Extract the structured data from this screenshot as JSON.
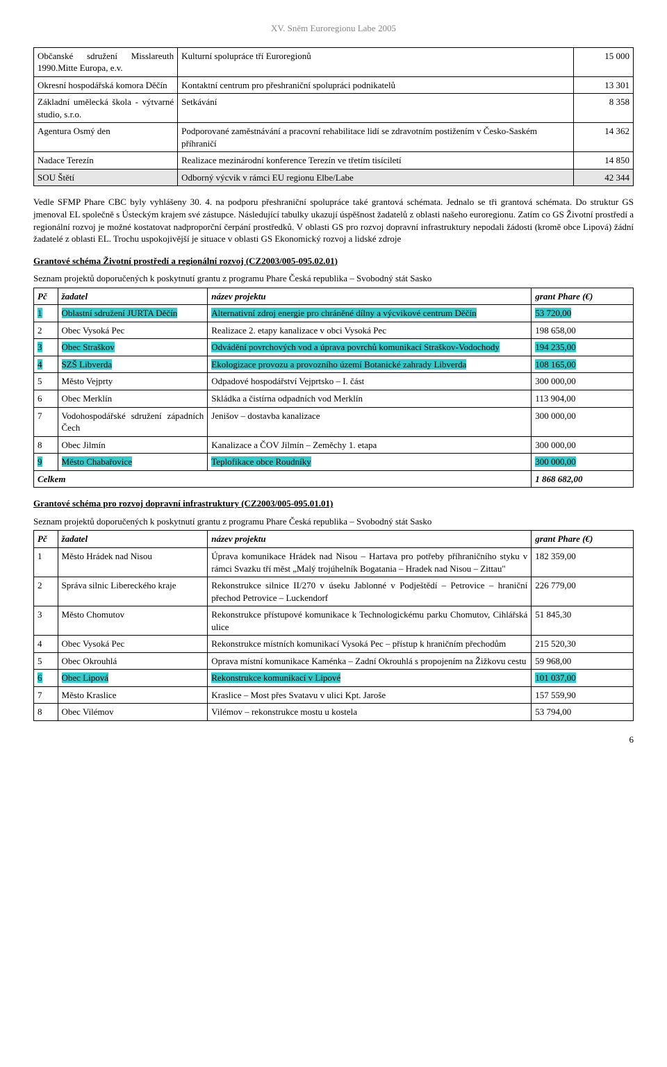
{
  "header": "XV. Sněm Euroregionu Labe  2005",
  "table1": {
    "rows": [
      {
        "c1": "Občanské sdružení Misslareuth 1990.Mitte Europa, e.v.",
        "c2": "Kulturní spolupráce tří Euroregionů",
        "c3": "15 000"
      },
      {
        "c1": "Okresní hospodářská komora Děčín",
        "c2": "Kontaktní centrum pro přeshraniční spolupráci podnikatelů",
        "c3": "13 301"
      },
      {
        "c1": "Základní umělecká škola - výtvarné studio, s.r.o.",
        "c2": "Setkávání",
        "c3": "8 358"
      },
      {
        "c1": "Agentura Osmý den",
        "c2": "Podporované zaměstnávání a pracovní rehabilitace lidí se zdravotním postižením v Česko-Saském příhraničí",
        "c3": "14 362"
      },
      {
        "c1": "Nadace Terezín",
        "c2": "Realizace mezinárodní konference Terezín ve třetím tisíciletí",
        "c3": "14 850"
      },
      {
        "c1": "SOU Štětí",
        "c2": "Odborný výcvik v rámci EU regionu Elbe/Labe",
        "c3": "42 344",
        "shade": true
      }
    ]
  },
  "paragraph": "Vedle SFMP Phare CBC byly vyhlášeny 30. 4. na podporu přeshraniční spolupráce také grantová schémata. Jednalo se tři grantová schémata. Do struktur GS jmenoval EL společně s Ústeckým krajem své zástupce. Následující tabulky ukazují úspěšnost žadatelů z oblasti našeho euroregionu. Zatím co GS Životní prostředí a regionální rozvoj je možné kostatovat nadproporční čerpání prostředků. V oblasti GS pro rozvoj dopravní infrastruktury nepodali žádosti (kromě obce Lipová) žádní žadatelé z oblasti EL. Trochu uspokojivější je situace v oblasti GS Ekonomický rozvoj a lidské zdroje",
  "scheme1": {
    "heading": "Grantové schéma Životní prostředí a regionální rozvoj (CZ2003/005-095.02.01)",
    "caption": "Seznam projektů doporučených k poskytnutí grantu z programu Phare Česká republika – Svobodný stát Sasko",
    "headers": {
      "pc": "Pč",
      "app": "žadatel",
      "proj": "název projektu",
      "grant": "grant Phare (€)"
    },
    "rows": [
      {
        "n": "1",
        "app": "Oblastní sdružení JURTA Děčín",
        "proj": "Alternativní zdroj energie pro chráněné dílny a výcvikové centrum Děčín",
        "grant": "53 720,00",
        "hl": true
      },
      {
        "n": "2",
        "app": "Obec Vysoká Pec",
        "proj": "Realizace 2. etapy kanalizace v obci Vysoká Pec",
        "grant": "198 658,00"
      },
      {
        "n": "3",
        "app": "Obec Straškov",
        "proj": "Odvádění povrchových vod a úprava povrchů komunikací Straškov-Vodochody",
        "grant": "194 235,00",
        "hl": true
      },
      {
        "n": "4",
        "app": "SZŠ Libverda",
        "proj": "Ekologizace provozu a provozního území Botanické zahrady Libverda",
        "grant": "108 165,00",
        "hl": true
      },
      {
        "n": "5",
        "app": "Město Vejprty",
        "proj": "Odpadové hospodářství Vejprtsko – I. část",
        "grant": "300 000,00"
      },
      {
        "n": "6",
        "app": "Obec Merklín",
        "proj": "Skládka a čistírna odpadních vod Merklín",
        "grant": "113 904,00"
      },
      {
        "n": "7",
        "app": "Vodohospodářské sdružení západních Čech",
        "proj": "Jenišov – dostavba kanalizace",
        "grant": "300 000,00"
      },
      {
        "n": "8",
        "app": "Obec Jilmín",
        "proj": "Kanalizace a ČOV Jilmín – Zeměchy 1. etapa",
        "grant": "300 000,00"
      },
      {
        "n": "9",
        "app": "Město Chabařovice",
        "proj": "Teplofikace obce Roudníky",
        "grant": "300 000,00",
        "hl": true
      }
    ],
    "total_label": "Celkem",
    "total_value": "1 868 682,00"
  },
  "scheme2": {
    "heading": "Grantové schéma pro rozvoj dopravní infrastruktury (CZ2003/005-095.01.01)",
    "caption": "Seznam projektů doporučených k poskytnutí grantu z programu Phare Česká republika – Svobodný stát Sasko",
    "headers": {
      "pc": "Pč",
      "app": "žadatel",
      "proj": "název projektu",
      "grant": "grant Phare (€)"
    },
    "rows": [
      {
        "n": "1",
        "app": "Město Hrádek nad Nisou",
        "proj": "Úprava komunikace Hrádek nad Nisou – Hartava pro potřeby příhraničního styku v rámci Svazku tří měst „Malý trojúhelník Bogatania – Hradek nad Nisou – Zittau\"",
        "grant": "182 359,00"
      },
      {
        "n": "2",
        "app": "Správa silnic Libereckého kraje",
        "proj": "Rekonstrukce silnice II/270 v úseku Jablonné v Podještědí – Petrovice – hraniční přechod Petrovice – Luckendorf",
        "grant": "226 779,00"
      },
      {
        "n": "3",
        "app": "Město Chomutov",
        "proj": "Rekonstrukce přístupové komunikace k Technologickému parku Chomutov, Cihlářská ulice",
        "grant": "51 845,30"
      },
      {
        "n": "4",
        "app": "Obec Vysoká Pec",
        "proj": "Rekonstrukce místních komunikací Vysoká Pec – přístup k hraničním přechodům",
        "grant": "215 520,30"
      },
      {
        "n": "5",
        "app": "Obec Okrouhlá",
        "proj": "Oprava místní komunikace Kaménka – Zadní Okrouhlá s propojením na Žižkovu cestu",
        "grant": "59 968,00"
      },
      {
        "n": "6",
        "app": "Obec Lipová",
        "proj": "Rekonstrukce komunikací v Lipové",
        "grant": "101 037,00",
        "hl": true
      },
      {
        "n": "7",
        "app": "Město Kraslice",
        "proj": "Kraslice – Most přes Svatavu v ulici Kpt. Jaroše",
        "grant": "157 559,90"
      },
      {
        "n": "8",
        "app": "Obec Vilémov",
        "proj": "Vilémov – rekonstrukce mostu u kostela",
        "grant": "53 794,00"
      }
    ]
  },
  "page_number": "6"
}
